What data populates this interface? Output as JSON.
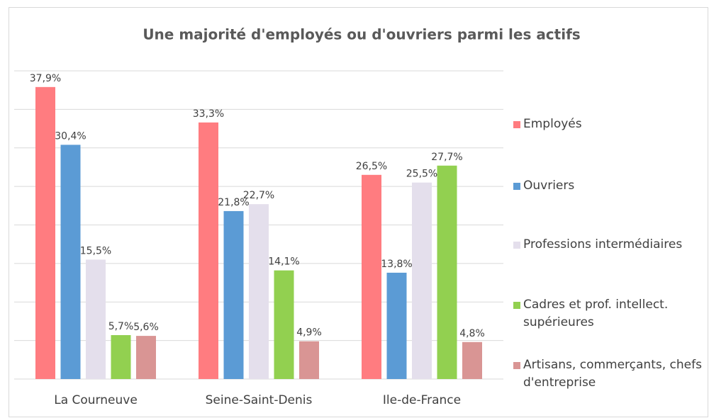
{
  "chart_data": {
    "type": "bar",
    "title": "Une majorité d'employés ou d'ouvriers parmi les actifs",
    "categories": [
      "La Courneuve",
      "Seine-Saint-Denis",
      "Ile-de-France"
    ],
    "series": [
      {
        "name": "Employés",
        "color": "#ff7c80",
        "values": [
          37.9,
          33.3,
          26.5
        ],
        "value_labels": [
          "37,9%",
          "33,3%",
          "26,5%"
        ]
      },
      {
        "name": "Ouvriers",
        "color": "#5b9bd5",
        "values": [
          30.4,
          21.8,
          13.8
        ],
        "value_labels": [
          "30,4%",
          "21,8%",
          "13,8%"
        ]
      },
      {
        "name": "Professions intermédiaires",
        "color": "#e4dfec",
        "values": [
          15.5,
          22.7,
          25.5
        ],
        "value_labels": [
          "15,5%",
          "22,7%",
          "25,5%"
        ]
      },
      {
        "name": "Cadres et prof. intellect. supérieures",
        "color": "#92d050",
        "values": [
          5.7,
          14.1,
          27.7
        ],
        "value_labels": [
          "5,7%",
          "14,1%",
          "27,7%"
        ]
      },
      {
        "name": "Artisans, commerçants, chefs d'entreprise",
        "color": "#d99594",
        "values": [
          5.6,
          4.9,
          4.8
        ],
        "value_labels": [
          "5,6%",
          "4,9%",
          "4,8%"
        ]
      }
    ],
    "ylim": [
      0,
      40
    ],
    "yticks": [
      0,
      5,
      10,
      15,
      20,
      25,
      30,
      35,
      40
    ],
    "grid": true,
    "legend": "right"
  }
}
